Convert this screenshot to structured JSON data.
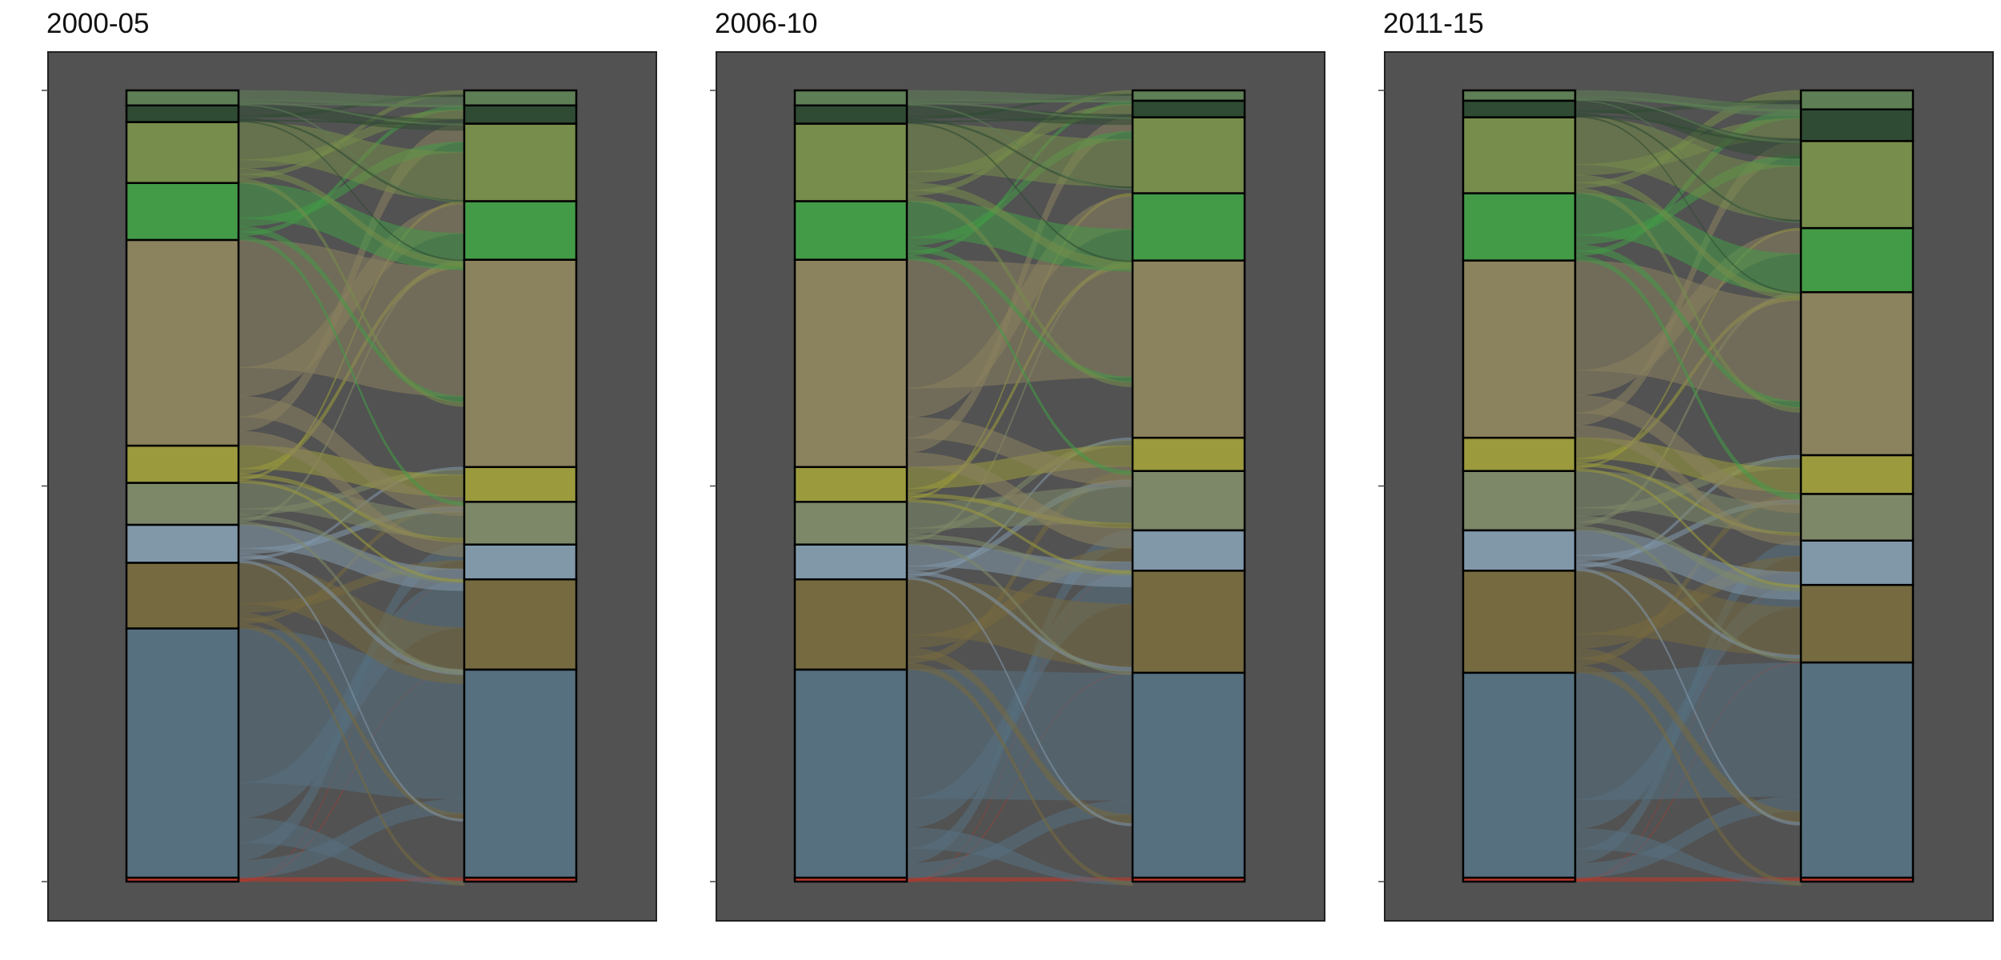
{
  "figure": {
    "background": "#ffffff",
    "plot_background": "#525252",
    "y_tick_count": 3
  },
  "chart_data": [
    {
      "type": "alluvial",
      "title": "2000-05",
      "colors": [
        "#c0392b",
        "#56707f",
        "#766a40",
        "#8198a9",
        "#7d8868",
        "#9b9a3d",
        "#8b825e",
        "#439b47",
        "#778d4b",
        "#2f4b33",
        "#5e7f55"
      ],
      "left": [
        0.5,
        31.5,
        8.3,
        4.8,
        5.3,
        4.7,
        26.0,
        7.2,
        7.7,
        2.1,
        1.9
      ],
      "right": [
        0.5,
        26.3,
        11.4,
        4.4,
        5.4,
        4.4,
        26.2,
        7.4,
        9.8,
        2.3,
        1.9
      ]
    },
    {
      "type": "alluvial",
      "title": "2006-10",
      "colors": [
        "#c0392b",
        "#56707f",
        "#766a40",
        "#8198a9",
        "#7d8868",
        "#9b9a3d",
        "#8b825e",
        "#439b47",
        "#778d4b",
        "#2f4b33",
        "#5e7f55"
      ],
      "left": [
        0.5,
        26.3,
        11.4,
        4.4,
        5.4,
        4.4,
        26.2,
        7.4,
        9.8,
        2.3,
        1.9
      ],
      "right": [
        0.5,
        25.9,
        12.9,
        5.1,
        7.5,
        4.2,
        22.4,
        8.5,
        9.6,
        2.1,
        1.3
      ]
    },
    {
      "type": "alluvial",
      "title": "2011-15",
      "colors": [
        "#c0392b",
        "#56707f",
        "#766a40",
        "#8198a9",
        "#7d8868",
        "#9b9a3d",
        "#8b825e",
        "#439b47",
        "#778d4b",
        "#2f4b33",
        "#5e7f55"
      ],
      "left": [
        0.5,
        25.9,
        12.9,
        5.1,
        7.5,
        4.2,
        22.4,
        8.5,
        9.6,
        2.1,
        1.3
      ],
      "right": [
        0.5,
        27.2,
        9.8,
        5.6,
        5.9,
        4.9,
        20.6,
        8.1,
        11.0,
        4.0,
        2.4
      ]
    }
  ]
}
